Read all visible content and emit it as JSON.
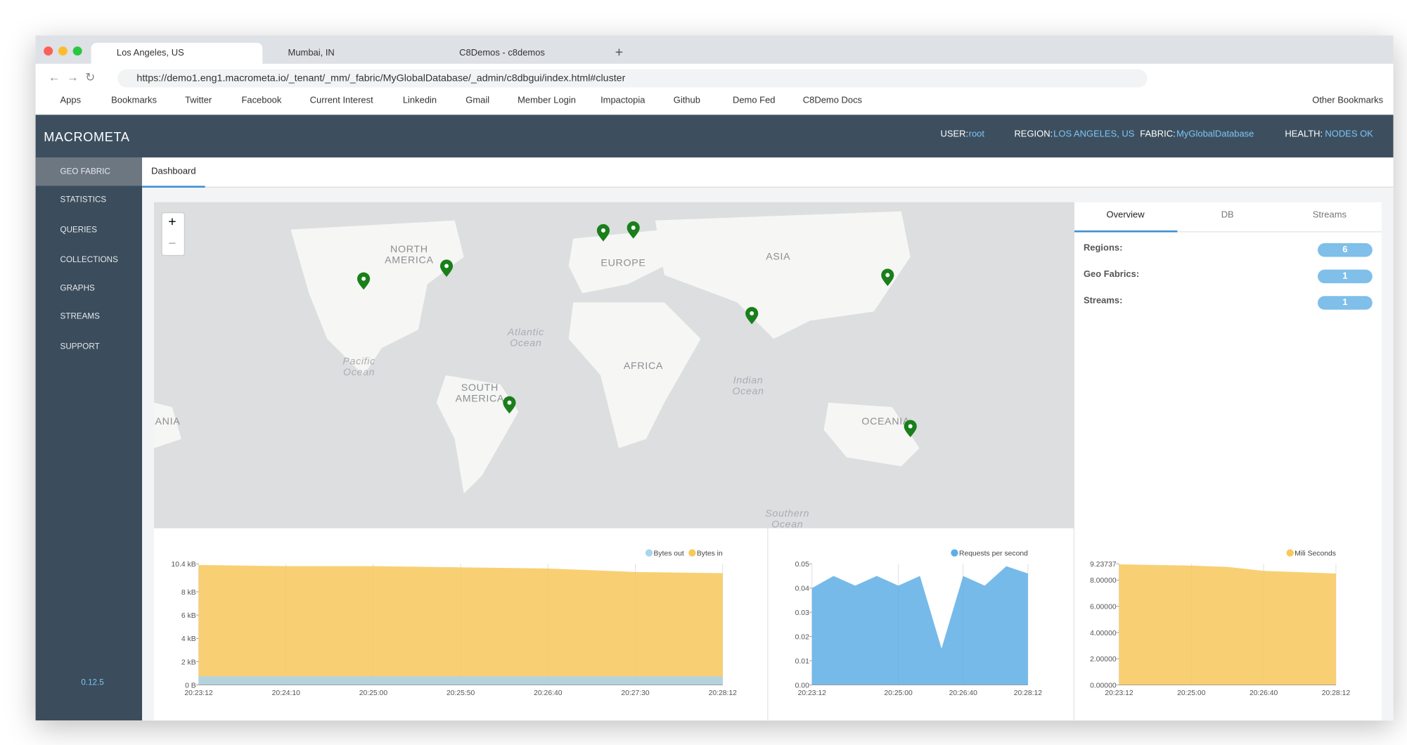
{
  "browser": {
    "tabs": [
      "Los Angeles, US",
      "Mumbai, IN",
      "C8Demos - c8demos"
    ],
    "url": "https://demo1.eng1.macrometa.io/_tenant/_mm/_fabric/MyGlobalDatabase/_admin/c8dbgui/index.html#cluster",
    "bookmarks": [
      "Apps",
      "Bookmarks",
      "Twitter",
      "Facebook",
      "Current Interest",
      "Linkedin",
      "Gmail",
      "Member Login",
      "Impactopia",
      "Github",
      "Demo Fed",
      "C8Demo Docs"
    ],
    "other_bookmarks": "Other Bookmarks"
  },
  "header": {
    "logo": "MACROMETA",
    "user_label": "USER:",
    "user": "root",
    "region_label": "REGION:",
    "region": "LOS ANGELES, US",
    "fabric_label": "FABRIC:",
    "fabric": "MyGlobalDatabase",
    "health_label": "HEALTH:",
    "health": "NODES OK"
  },
  "sidebar": {
    "items": [
      "GEO FABRIC",
      "STATISTICS",
      "QUERIES",
      "COLLECTIONS",
      "GRAPHS",
      "STREAMS",
      "SUPPORT"
    ],
    "version": "0.12.5"
  },
  "dashboard": {
    "tab": "Dashboard"
  },
  "map": {
    "labels": [
      "NORTH AMERICA",
      "EUROPE",
      "ASIA",
      "Atlantic Ocean",
      "Pacific Ocean",
      "AFRICA",
      "SOUTH AMERICA",
      "Indian Ocean",
      "OCEANIA",
      "ANIA",
      "Southern Ocean"
    ],
    "zoom_in": "+",
    "zoom_out": "−"
  },
  "overview": {
    "tabs": [
      "Overview",
      "DB",
      "Streams"
    ],
    "rows": [
      {
        "label": "Regions:",
        "value": 6
      },
      {
        "label": "Geo Fabrics:",
        "value": 1
      },
      {
        "label": "Streams:",
        "value": 1
      }
    ]
  },
  "chart_data": [
    {
      "type": "area",
      "categories": [
        "20:23:12",
        "20:24:10",
        "20:25:00",
        "20:25:50",
        "20:26:40",
        "20:27:30",
        "20:28:12"
      ],
      "series": [
        {
          "name": "Bytes out",
          "color": "#a9d4ef",
          "values": [
            0.75,
            0.75,
            0.75,
            0.75,
            0.75,
            0.75,
            0.75
          ]
        },
        {
          "name": "Bytes in",
          "color": "#f7c85a",
          "values": [
            10.3,
            10.2,
            10.2,
            10.1,
            10.0,
            9.7,
            9.6
          ]
        }
      ],
      "ylim": [
        0,
        10.4
      ],
      "yticks": [
        {
          "value": 0,
          "label": "0 B"
        },
        {
          "value": 2,
          "label": "2 kB"
        },
        {
          "value": 4,
          "label": "4 kB"
        },
        {
          "value": 6,
          "label": "6 kB"
        },
        {
          "value": 8,
          "label": "8 kB"
        },
        {
          "value": 10.4,
          "label": "10.4 kB"
        }
      ]
    },
    {
      "type": "area",
      "categories": [
        "20:23:12",
        null,
        null,
        null,
        "20:25:00",
        null,
        null,
        "20:26:40",
        null,
        null,
        "20:28:12"
      ],
      "series": [
        {
          "name": "Requests per second",
          "color": "#5eaee6",
          "values": [
            0.04,
            0.045,
            0.041,
            0.045,
            0.041,
            0.045,
            0.015,
            0.045,
            0.041,
            0.049,
            0.046
          ]
        }
      ],
      "ylim": [
        0,
        0.05
      ],
      "yticks": [
        {
          "value": 0,
          "label": "0.00"
        },
        0.01,
        0.02,
        0.03,
        0.04,
        0.05
      ]
    },
    {
      "type": "area",
      "categories": [
        "20:23:12",
        null,
        "20:25:00",
        null,
        "20:26:40",
        null,
        "20:28:12"
      ],
      "series": [
        {
          "name": "Mili Seconds",
          "color": "#f7c85a",
          "values": [
            9.2,
            9.15,
            9.1,
            9.0,
            8.7,
            8.6,
            8.5
          ]
        }
      ],
      "ylim": [
        0,
        9.23737
      ],
      "yticks": [
        {
          "value": 0,
          "label": "0.00000"
        },
        {
          "value": 2,
          "label": "2.00000"
        },
        {
          "value": 4,
          "label": "4.00000"
        },
        {
          "value": 6,
          "label": "6.00000"
        },
        {
          "value": 8,
          "label": "8.00000"
        },
        9.23737
      ]
    }
  ]
}
